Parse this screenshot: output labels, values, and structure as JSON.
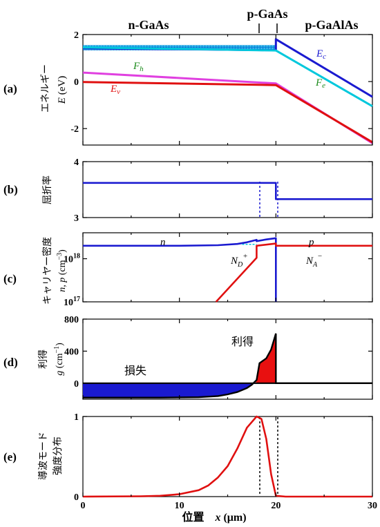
{
  "header": {
    "n_region": "n-GaAs",
    "p_region": "p-GaAs",
    "pal_region": "p-GaAlAs"
  },
  "panels": {
    "a": {
      "label": "(a)",
      "ylabel_jp": "エネルギー",
      "ylabel_sym": "E",
      "ylabel_unit": " (eV)",
      "ticks": [
        "2",
        "0",
        "-2"
      ]
    },
    "b": {
      "label": "(b)",
      "ylabel_jp": "屈折率",
      "ticks": [
        "4",
        "3"
      ]
    },
    "c": {
      "label": "(c)",
      "ylabel_jp": "キャリヤー密度",
      "ylabel_sym": "n, p",
      "ylabel_unit": " (cm",
      "ylabel_exp": "−3",
      "ylabel_close": ")",
      "ticks": [
        {
          "base": "10",
          "exp": "18"
        },
        {
          "base": "10",
          "exp": "17"
        }
      ]
    },
    "d": {
      "label": "(d)",
      "ylabel_jp": "利得",
      "ylabel_sym": "g",
      "ylabel_unit": " (cm",
      "ylabel_exp": "−1",
      "ylabel_close": ")",
      "ticks": [
        "800",
        "400",
        "0"
      ],
      "loss_label": "損失",
      "gain_label": "利得"
    },
    "e": {
      "label": "(e)",
      "ylabel_jp1": "導波モード",
      "ylabel_jp2": "強度分布",
      "ticks": [
        "1",
        "0"
      ]
    }
  },
  "xaxis": {
    "label_jp": "位置",
    "label_sym": "x",
    "label_unit": " (μm)",
    "ticks": [
      "0",
      "10",
      "20",
      "30"
    ]
  },
  "annotations": {
    "Ec": {
      "main": "E",
      "sub": "c"
    },
    "Fe": {
      "main": "F",
      "sub": "e"
    },
    "Fh": {
      "main": "F",
      "sub": "h"
    },
    "Ev": {
      "main": "E",
      "sub": "v"
    },
    "n": "n",
    "p": "p",
    "ND": {
      "main": "N",
      "sub": "D",
      "sup": "+"
    },
    "NA": {
      "main": "N",
      "sub": "A",
      "sup": "−"
    }
  },
  "chart_data": [
    {
      "type": "line",
      "panel": "a",
      "xlabel": "位置 x (μm)",
      "ylabel": "エネルギー E (eV)",
      "xlim": [
        0,
        30
      ],
      "ylim": [
        -2.7,
        2.0
      ],
      "series": [
        {
          "name": "Ec",
          "color": "#1a1ad0",
          "x": [
            0,
            20,
            20,
            30
          ],
          "y": [
            1.42,
            1.33,
            1.8,
            -0.65
          ]
        },
        {
          "name": "Fe",
          "color": "#00c8dc",
          "x": [
            0,
            20,
            30
          ],
          "y": [
            1.45,
            1.32,
            -1.05
          ]
        },
        {
          "name": "Fh",
          "color": "#e040e0",
          "x": [
            0,
            20,
            30
          ],
          "y": [
            0.38,
            -0.08,
            -2.62
          ]
        },
        {
          "name": "Ev",
          "color": "#e01010",
          "x": [
            0,
            20,
            30
          ],
          "y": [
            -0.02,
            -0.15,
            -2.58
          ]
        }
      ]
    },
    {
      "type": "line",
      "panel": "b",
      "ylabel": "屈折率",
      "xlim": [
        0,
        30
      ],
      "ylim": [
        3,
        4
      ],
      "series": [
        {
          "name": "index",
          "color": "#1a1ad0",
          "x": [
            0,
            20,
            20,
            30
          ],
          "y": [
            3.62,
            3.62,
            3.33,
            3.33
          ]
        }
      ]
    },
    {
      "type": "line",
      "panel": "c",
      "ylabel": "キャリヤー密度 n, p (cm⁻³)",
      "xlim": [
        0,
        30
      ],
      "ylim": [
        1e+17,
        4e+18
      ],
      "yscale": "log",
      "series": [
        {
          "name": "n",
          "color": "#1a1ad0",
          "x": [
            0,
            10,
            14,
            16,
            17,
            18,
            18,
            19,
            20,
            20
          ],
          "y": [
            2e+18,
            2e+18,
            2.06e+18,
            2.2e+18,
            2.4e+18,
            2.75e+18,
            2.55e+18,
            2.8e+18,
            3e+18,
            1e+17
          ]
        },
        {
          "name": "p",
          "color": "#e01010",
          "x": [
            13.8,
            18,
            18,
            20,
            20,
            30
          ],
          "y": [
            1e+17,
            1.05e+18,
            2e+18,
            2.25e+18,
            2e+18,
            2e+18
          ]
        },
        {
          "name": "ND+",
          "color": "#00c8dc",
          "x": [
            16.5,
            18
          ],
          "y": [
            2.15e+18,
            2.15e+18
          ]
        }
      ]
    },
    {
      "type": "area",
      "panel": "d",
      "ylabel": "利得 g (cm⁻¹)",
      "xlim": [
        0,
        30
      ],
      "ylim": [
        -200,
        800
      ],
      "series": [
        {
          "name": "g",
          "color": "#000000",
          "x": [
            0,
            8,
            12,
            14,
            15,
            16,
            17,
            17.5,
            18,
            18.3,
            19,
            19.5,
            20,
            20,
            30
          ],
          "y": [
            -180,
            -180,
            -175,
            -160,
            -140,
            -110,
            -60,
            -20,
            40,
            250,
            310,
            420,
            620,
            0,
            0
          ]
        }
      ]
    },
    {
      "type": "line",
      "panel": "e",
      "ylabel": "導波モード 強度分布",
      "xlim": [
        0,
        30
      ],
      "ylim": [
        0,
        1
      ],
      "series": [
        {
          "name": "mode",
          "color": "#e01010",
          "x": [
            0,
            6,
            8,
            10,
            12,
            13,
            14,
            15,
            16,
            17,
            18,
            18.5,
            19,
            19.5,
            20,
            21,
            30
          ],
          "y": [
            0,
            0.004,
            0.01,
            0.03,
            0.08,
            0.14,
            0.24,
            0.38,
            0.6,
            0.86,
            1.0,
            0.97,
            0.72,
            0.28,
            0.01,
            0,
            0
          ]
        }
      ]
    }
  ]
}
